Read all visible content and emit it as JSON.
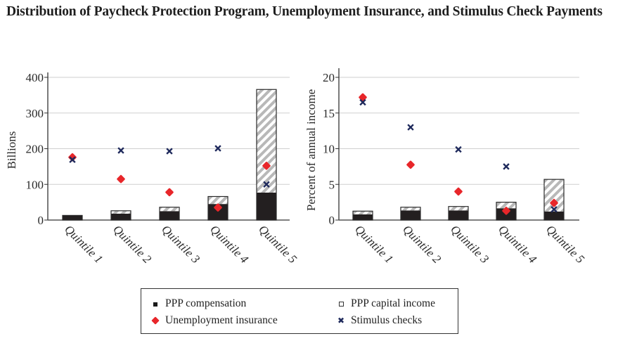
{
  "title": "Distribution of Paycheck Protection Program, Unemployment Insurance, and Stimulus Check Payments",
  "colors": {
    "ppp_compensation": "#231f20",
    "ppp_capital_income_hatch": "#b8b8b8",
    "unemployment_insurance": "#e8262a",
    "stimulus_checks": "#1f2a5c",
    "gridline": "#cfcfcf",
    "axis": "#333333"
  },
  "legend": {
    "items": [
      {
        "label": "PPP compensation",
        "icon": "filled-square-icon"
      },
      {
        "label": "PPP capital income",
        "icon": "open-square-icon"
      },
      {
        "label": "Unemployment insurance",
        "icon": "red-diamond-icon"
      },
      {
        "label": "Stimulus checks",
        "icon": "x-mark-icon"
      }
    ]
  },
  "chart_data": [
    {
      "type": "bar",
      "stacked": true,
      "title": "",
      "xlabel": "",
      "ylabel": "Billions",
      "ylim": [
        0,
        400
      ],
      "yticks": [
        0,
        100,
        200,
        300,
        400
      ],
      "grid": true,
      "categories": [
        "Quintile 1",
        "Quintile 2",
        "Quintile 3",
        "Quintile 4",
        "Quintile 5"
      ],
      "series": [
        {
          "name": "PPP compensation",
          "kind": "bar",
          "values": [
            12,
            18,
            25,
            45,
            77
          ]
        },
        {
          "name": "PPP capital income",
          "kind": "bar",
          "values": [
            1,
            8,
            11,
            21,
            289
          ]
        },
        {
          "name": "Unemployment insurance",
          "kind": "scatter",
          "marker": "diamond",
          "values": [
            176,
            115,
            78,
            35,
            152
          ]
        },
        {
          "name": "Stimulus checks",
          "kind": "scatter",
          "marker": "x",
          "values": [
            169,
            195,
            193,
            201,
            100
          ]
        }
      ]
    },
    {
      "type": "bar",
      "stacked": true,
      "title": "",
      "xlabel": "",
      "ylabel": "Percent of annual income",
      "ylim": [
        0,
        20
      ],
      "yticks": [
        0,
        5,
        10,
        15,
        20
      ],
      "grid": true,
      "categories": [
        "Quintile 1",
        "Quintile 2",
        "Quintile 3",
        "Quintile 4",
        "Quintile 5"
      ],
      "series": [
        {
          "name": "PPP compensation",
          "kind": "bar",
          "values": [
            0.8,
            1.35,
            1.35,
            1.65,
            1.2
          ]
        },
        {
          "name": "PPP capital income",
          "kind": "bar",
          "values": [
            0.45,
            0.45,
            0.55,
            0.85,
            4.5
          ]
        },
        {
          "name": "Unemployment insurance",
          "kind": "scatter",
          "marker": "diamond",
          "values": [
            17.2,
            7.75,
            4.0,
            1.3,
            2.4
          ]
        },
        {
          "name": "Stimulus checks",
          "kind": "scatter",
          "marker": "x",
          "values": [
            16.5,
            13.0,
            9.9,
            7.5,
            1.5
          ]
        }
      ]
    }
  ]
}
